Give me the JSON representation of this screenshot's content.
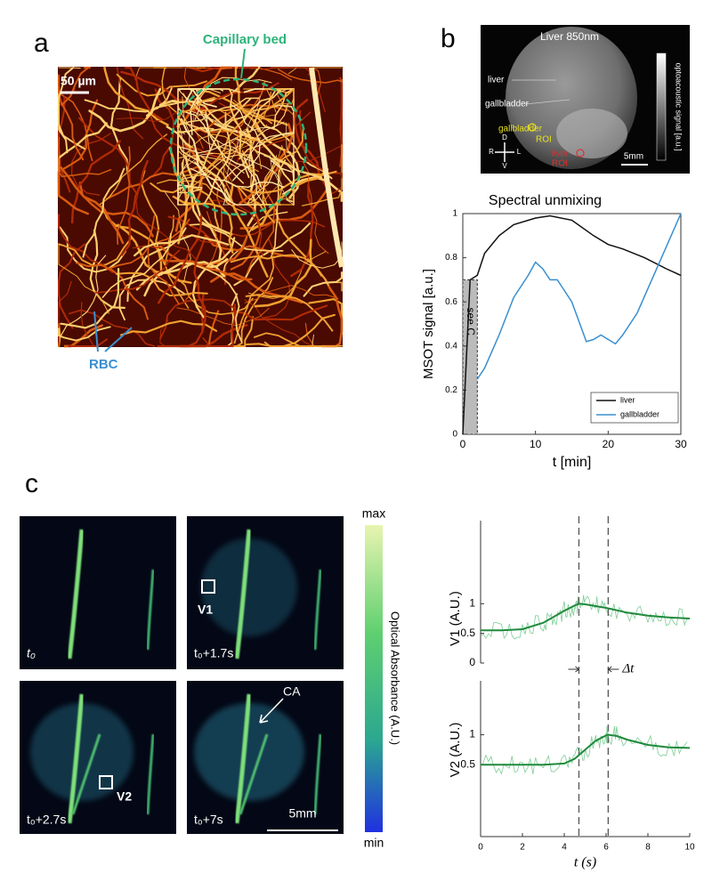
{
  "panel_labels": [
    "a",
    "b",
    "c"
  ],
  "panel_a": {
    "scale_bar": "50 µm",
    "annotation": "Capillary bed",
    "rbc_label": "RBC"
  },
  "panel_b_image": {
    "title": "Liver 850nm",
    "labels": [
      "liver",
      "gallbladder",
      "gallbladder",
      "ROI",
      "liver",
      "ROI"
    ],
    "scale_bar": "5mm",
    "colorbar_label": "optoacoustic signal [a.u.]",
    "orientation": [
      "D",
      "V",
      "R",
      "L"
    ]
  },
  "panel_c_images": {
    "frames": [
      "t₀",
      "t₀+1.7s",
      "t₀+2.7s",
      "t₀+7s"
    ],
    "roi_labels": [
      "V1",
      "V2"
    ],
    "arrow_label": "CA",
    "scale_bar": "5mm",
    "colorbar_max": "max",
    "colorbar_min": "min",
    "colorbar_label": "Optical Absorbance (A.U.)"
  },
  "chart_data": [
    {
      "type": "line",
      "title": "Spectral unmixing",
      "xlabel": "t [min]",
      "ylabel": "MSOT signal [a.u.]",
      "xlim": [
        0,
        30
      ],
      "ylim": [
        0,
        1
      ],
      "xticks": [
        0,
        10,
        20,
        30
      ],
      "yticks": [
        0,
        0.2,
        0.4,
        0.6,
        0.8,
        1
      ],
      "annotation": "see C",
      "shade": {
        "x": [
          0,
          2
        ],
        "y": [
          0,
          0.7
        ]
      },
      "legend": "lower right",
      "series": [
        {
          "name": "liver",
          "color": "#111111",
          "x": [
            0,
            1,
            2,
            3,
            5,
            7,
            10,
            12,
            15,
            18,
            20,
            22,
            25,
            28,
            30
          ],
          "values": [
            0,
            0.7,
            0.72,
            0.82,
            0.9,
            0.95,
            0.98,
            0.99,
            0.97,
            0.9,
            0.86,
            0.84,
            0.8,
            0.75,
            0.72
          ]
        },
        {
          "name": "gallbladder",
          "color": "#3a8fd0",
          "x": [
            2,
            3,
            5,
            7,
            9,
            10,
            11,
            12,
            13,
            15,
            17,
            18,
            19,
            20,
            21,
            22,
            24,
            26,
            28,
            30
          ],
          "values": [
            0.25,
            0.3,
            0.45,
            0.62,
            0.72,
            0.78,
            0.75,
            0.7,
            0.7,
            0.6,
            0.42,
            0.43,
            0.45,
            0.43,
            0.41,
            0.45,
            0.55,
            0.7,
            0.85,
            1
          ]
        }
      ]
    },
    {
      "type": "line",
      "ylabel": "V1 (A.U.)",
      "xlim": [
        0,
        10
      ],
      "ylim": [
        0,
        2.4
      ],
      "yticks": [
        0,
        0.5,
        1
      ],
      "annotation": "Δt",
      "vlines": [
        4.7,
        6.1
      ],
      "series": [
        {
          "color": "#1f8a3c",
          "x": [
            0,
            1,
            2,
            3,
            3.5,
            4,
            4.5,
            4.7,
            5,
            5.5,
            6,
            7,
            8,
            9,
            10
          ],
          "values": [
            0.55,
            0.55,
            0.57,
            0.68,
            0.78,
            0.88,
            0.97,
            1,
            0.99,
            0.96,
            0.93,
            0.85,
            0.8,
            0.77,
            0.75
          ]
        }
      ]
    },
    {
      "type": "line",
      "ylabel": "V2 (A.U.)",
      "xlabel": "t (s)",
      "xlim": [
        0,
        10
      ],
      "ylim": [
        -0.7,
        1.9
      ],
      "xticks": [
        0,
        2,
        4,
        6,
        8,
        10
      ],
      "yticks": [
        0.5,
        1
      ],
      "series": [
        {
          "color": "#1f8a3c",
          "x": [
            0,
            1,
            2,
            3,
            4,
            4.5,
            5,
            5.5,
            6,
            6.1,
            6.5,
            7,
            8,
            9,
            10
          ],
          "values": [
            0.5,
            0.5,
            0.5,
            0.5,
            0.52,
            0.6,
            0.75,
            0.9,
            0.99,
            1,
            0.98,
            0.92,
            0.83,
            0.79,
            0.78
          ]
        }
      ]
    }
  ]
}
